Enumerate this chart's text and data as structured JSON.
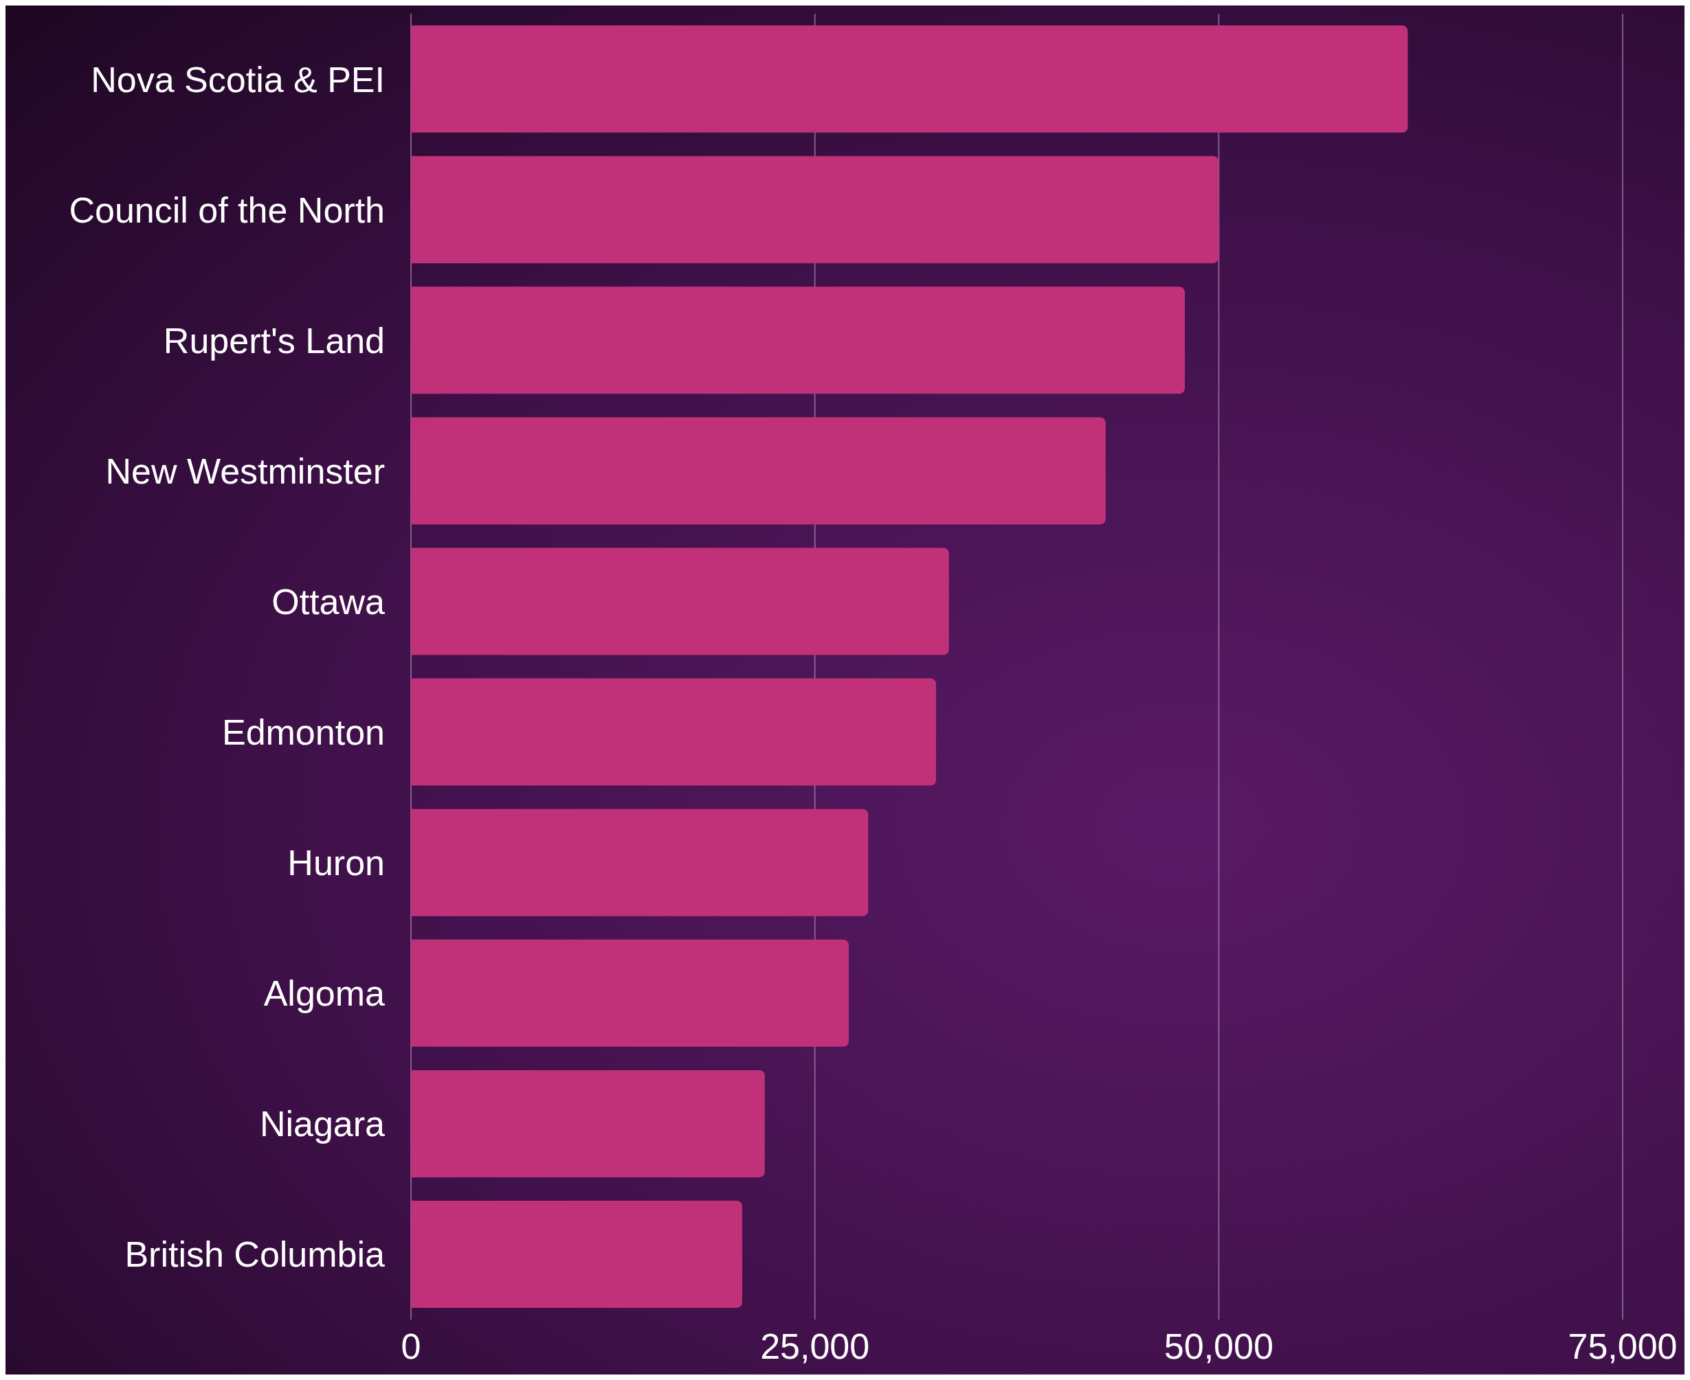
{
  "chart_data": {
    "type": "bar",
    "orientation": "horizontal",
    "categories": [
      "Nova Scotia & PEI",
      "Council of the North",
      "Rupert's Land",
      "New Westminster",
      "Ottawa",
      "Edmonton",
      "Huron",
      "Algoma",
      "Niagara",
      "British Columbia"
    ],
    "values": [
      61700,
      50000,
      47900,
      43000,
      33300,
      32500,
      28300,
      27100,
      21900,
      20500
    ],
    "color": "#c13179",
    "xlim": [
      0,
      75000
    ],
    "xticks": [
      {
        "value": 0,
        "label": "0"
      },
      {
        "value": 25000,
        "label": "25,000"
      },
      {
        "value": 50000,
        "label": "50,000"
      },
      {
        "value": 75000,
        "label": "75,000"
      }
    ],
    "grid": "x"
  }
}
